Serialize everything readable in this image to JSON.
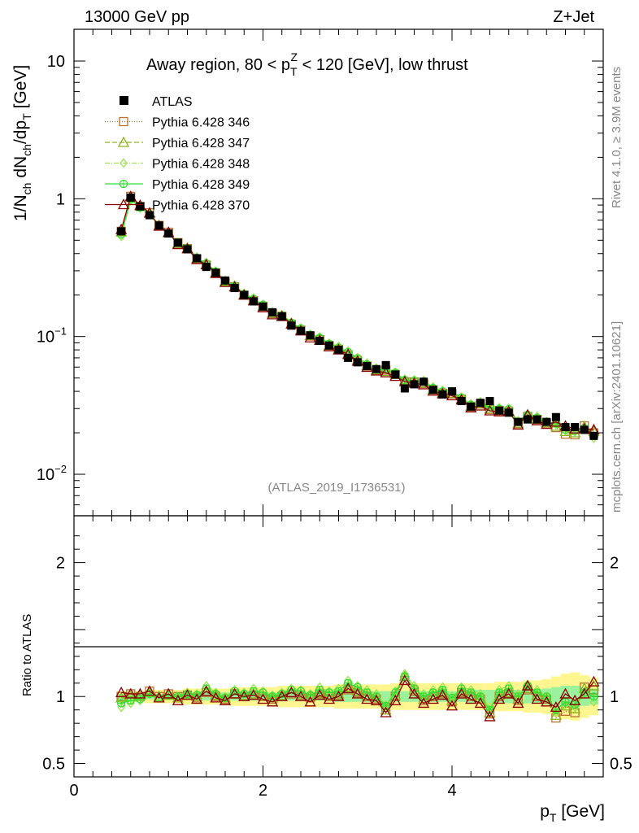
{
  "header": {
    "left": "13000 GeV pp",
    "right": "Z+Jet"
  },
  "side": {
    "rivet": "Rivet 4.1.0, ≥ 3.9M events",
    "mcplots": "mcplots.cern.ch [arXiv:2401.10621]"
  },
  "chart_data": {
    "type": "scatter",
    "title": "Away region, 80 < p_T^Z < 120 [GeV], low thrust",
    "title_parts": {
      "pre": "Away region, 80 < p",
      "sup": "Z",
      "sub": "T",
      "post": " < 120 [GeV], low thrust"
    },
    "analysis_id": "(ATLAS_2019_I1736531)",
    "xlabel": "p_T [GeV]",
    "xlabel_parts": {
      "main": "p",
      "sub": "T",
      "post": " [GeV]"
    },
    "ylabel": "1/N_ch dN_ch/dp_T [GeV]",
    "ylabel_parts": {
      "a": "1/N",
      "a_sub": "ch",
      "b": " dN",
      "b_sub": "ch",
      "c": "/dp",
      "c_sub": "T",
      "d": " [GeV]"
    },
    "ratio_ylabel": "Ratio to ATLAS",
    "xlim": [
      0,
      5.6
    ],
    "ylim": [
      0.005,
      17
    ],
    "ratio_ylim": [
      0.4,
      2.35
    ],
    "x_ticks": [
      0,
      2,
      4
    ],
    "x_tick_labels": [
      "0",
      "2",
      "4"
    ],
    "y_ticks": [
      0.01,
      0.1,
      1,
      10
    ],
    "y_tick_labels": [
      {
        "base": "10",
        "exp": "−2"
      },
      {
        "base": "10",
        "exp": "−1"
      },
      {
        "base": "1",
        "exp": ""
      },
      {
        "base": "10",
        "exp": ""
      }
    ],
    "ratio_ticks": [
      0.5,
      1,
      2
    ],
    "ratio_tick_labels": [
      "0.5",
      "1",
      "2"
    ],
    "legend": [
      "ATLAS",
      "Pythia 6.428 346",
      "Pythia 6.428 347",
      "Pythia 6.428 348",
      "Pythia 6.428 349",
      "Pythia 6.428 370"
    ],
    "x": [
      0.5,
      0.6,
      0.7,
      0.8,
      0.9,
      1.0,
      1.1,
      1.2,
      1.3,
      1.4,
      1.5,
      1.6,
      1.7,
      1.8,
      1.9,
      2.0,
      2.1,
      2.2,
      2.3,
      2.4,
      2.5,
      2.6,
      2.7,
      2.8,
      2.9,
      3.0,
      3.1,
      3.2,
      3.3,
      3.4,
      3.5,
      3.6,
      3.7,
      3.8,
      3.9,
      4.0,
      4.1,
      4.2,
      4.3,
      4.4,
      4.5,
      4.6,
      4.7,
      4.8,
      4.9,
      5.0,
      5.1,
      5.2,
      5.3,
      5.4,
      5.5
    ],
    "data": [
      0.58,
      1.02,
      0.88,
      0.76,
      0.64,
      0.56,
      0.48,
      0.43,
      0.37,
      0.32,
      0.29,
      0.255,
      0.225,
      0.2,
      0.18,
      0.165,
      0.15,
      0.14,
      0.12,
      0.11,
      0.102,
      0.093,
      0.086,
      0.08,
      0.07,
      0.065,
      0.061,
      0.058,
      0.062,
      0.053,
      0.042,
      0.045,
      0.047,
      0.041,
      0.038,
      0.04,
      0.034,
      0.031,
      0.033,
      0.034,
      0.029,
      0.028,
      0.024,
      0.025,
      0.025,
      0.024,
      0.026,
      0.022,
      0.022,
      0.021,
      0.019
    ],
    "band_yellow": [
      0.04,
      0.04,
      0.04,
      0.05,
      0.05,
      0.05,
      0.05,
      0.06,
      0.06,
      0.06,
      0.06,
      0.06,
      0.07,
      0.07,
      0.07,
      0.07,
      0.07,
      0.08,
      0.08,
      0.08,
      0.08,
      0.08,
      0.08,
      0.09,
      0.09,
      0.09,
      0.09,
      0.09,
      0.09,
      0.1,
      0.1,
      0.1,
      0.1,
      0.1,
      0.1,
      0.1,
      0.1,
      0.1,
      0.1,
      0.1,
      0.11,
      0.11,
      0.11,
      0.12,
      0.12,
      0.13,
      0.15,
      0.17,
      0.18,
      0.16,
      0.14
    ],
    "band_green": [
      0.02,
      0.02,
      0.02,
      0.02,
      0.02,
      0.02,
      0.02,
      0.02,
      0.03,
      0.03,
      0.03,
      0.03,
      0.03,
      0.03,
      0.03,
      0.03,
      0.03,
      0.03,
      0.03,
      0.03,
      0.03,
      0.03,
      0.03,
      0.04,
      0.04,
      0.04,
      0.04,
      0.04,
      0.04,
      0.04,
      0.04,
      0.04,
      0.04,
      0.04,
      0.04,
      0.04,
      0.04,
      0.05,
      0.05,
      0.05,
      0.05,
      0.05,
      0.05,
      0.05,
      0.05,
      0.06,
      0.07,
      0.08,
      0.08,
      0.07,
      0.06
    ],
    "series": [
      {
        "name": "Pythia 6.428 346",
        "color": "#b87333",
        "marker": "square",
        "dash": "1,2",
        "ratio": [
          1.0,
          1.02,
          1.0,
          1.04,
          1.0,
          1.02,
          1.0,
          1.01,
          0.99,
          1.03,
          1.0,
          0.98,
          1.02,
          1.0,
          1.01,
          1.0,
          0.98,
          1.0,
          1.02,
          1.01,
          0.99,
          1.02,
          1.0,
          1.01,
          1.05,
          1.03,
          1.0,
          0.98,
          0.92,
          1.0,
          1.12,
          1.04,
          0.97,
          1.0,
          1.02,
          0.96,
          1.03,
          1.0,
          0.98,
          0.87,
          1.0,
          1.02,
          0.97,
          1.05,
          1.0,
          0.98,
          0.84,
          0.89,
          0.88,
          1.07,
          1.05
        ]
      },
      {
        "name": "Pythia 6.428 347",
        "color": "#8db31a",
        "marker": "triangle",
        "dash": "6,3",
        "ratio": [
          0.99,
          1.0,
          1.01,
          1.03,
          1.0,
          1.01,
          0.99,
          1.02,
          1.0,
          1.04,
          1.01,
          0.99,
          1.02,
          1.01,
          1.02,
          1.01,
          0.99,
          1.01,
          1.03,
          1.02,
          1.0,
          1.03,
          1.01,
          1.02,
          1.07,
          1.04,
          1.01,
          0.99,
          0.9,
          1.01,
          1.15,
          1.05,
          0.98,
          1.01,
          1.03,
          0.97,
          1.04,
          1.01,
          0.99,
          0.88,
          1.01,
          1.03,
          0.98,
          1.06,
          1.01,
          0.99,
          0.86,
          0.93,
          0.91,
          1.06,
          1.08
        ]
      },
      {
        "name": "Pythia 6.428 348",
        "color": "#99e64d",
        "marker": "diamond",
        "dash": "6,2,1,2",
        "ratio": [
          0.92,
          0.95,
          0.97,
          1.02,
          0.99,
          1.01,
          1.0,
          1.03,
          1.02,
          1.08,
          1.03,
          1.0,
          1.05,
          1.03,
          1.06,
          1.04,
          1.01,
          1.03,
          1.06,
          1.05,
          1.02,
          1.07,
          1.04,
          1.06,
          1.12,
          1.08,
          1.05,
          1.02,
          0.94,
          1.04,
          1.17,
          1.08,
          1.02,
          1.05,
          1.07,
          1.0,
          1.07,
          1.05,
          1.02,
          0.92,
          1.05,
          1.08,
          1.02,
          1.09,
          1.05,
          1.0,
          0.88,
          0.94,
          0.92,
          1.02,
          0.96
        ]
      },
      {
        "name": "Pythia 6.428 349",
        "color": "#33dd33",
        "marker": "circle",
        "dash": "",
        "ratio": [
          0.95,
          0.97,
          0.98,
          1.02,
          0.99,
          1.01,
          1.0,
          1.02,
          1.01,
          1.06,
          1.02,
          0.99,
          1.04,
          1.02,
          1.04,
          1.03,
          1.0,
          1.02,
          1.05,
          1.04,
          1.01,
          1.05,
          1.03,
          1.04,
          1.1,
          1.07,
          1.03,
          1.0,
          0.93,
          1.03,
          1.15,
          1.06,
          1.0,
          1.03,
          1.05,
          0.99,
          1.06,
          1.03,
          1.0,
          0.9,
          1.03,
          1.06,
          1.0,
          1.08,
          1.03,
          1.0,
          0.9,
          0.96,
          0.94,
          1.03,
          1.0
        ]
      },
      {
        "name": "Pythia 6.428 370",
        "color": "#8b0000",
        "marker": "triangle",
        "dash": "",
        "ratio": [
          1.03,
          1.02,
          1.02,
          1.04,
          0.99,
          1.02,
          0.97,
          1.01,
          0.98,
          1.04,
          0.99,
          0.97,
          1.02,
          1.0,
          1.01,
          0.98,
          0.96,
          1.0,
          1.03,
          1.0,
          0.96,
          1.01,
          0.98,
          1.0,
          1.06,
          1.02,
          0.98,
          0.97,
          0.88,
          0.97,
          1.12,
          1.02,
          0.95,
          0.98,
          1.01,
          0.93,
          1.02,
          0.98,
          0.95,
          0.85,
          0.98,
          1.02,
          0.95,
          1.08,
          0.98,
          0.96,
          0.92,
          1.02,
          0.97,
          1.02,
          1.11
        ]
      }
    ]
  }
}
